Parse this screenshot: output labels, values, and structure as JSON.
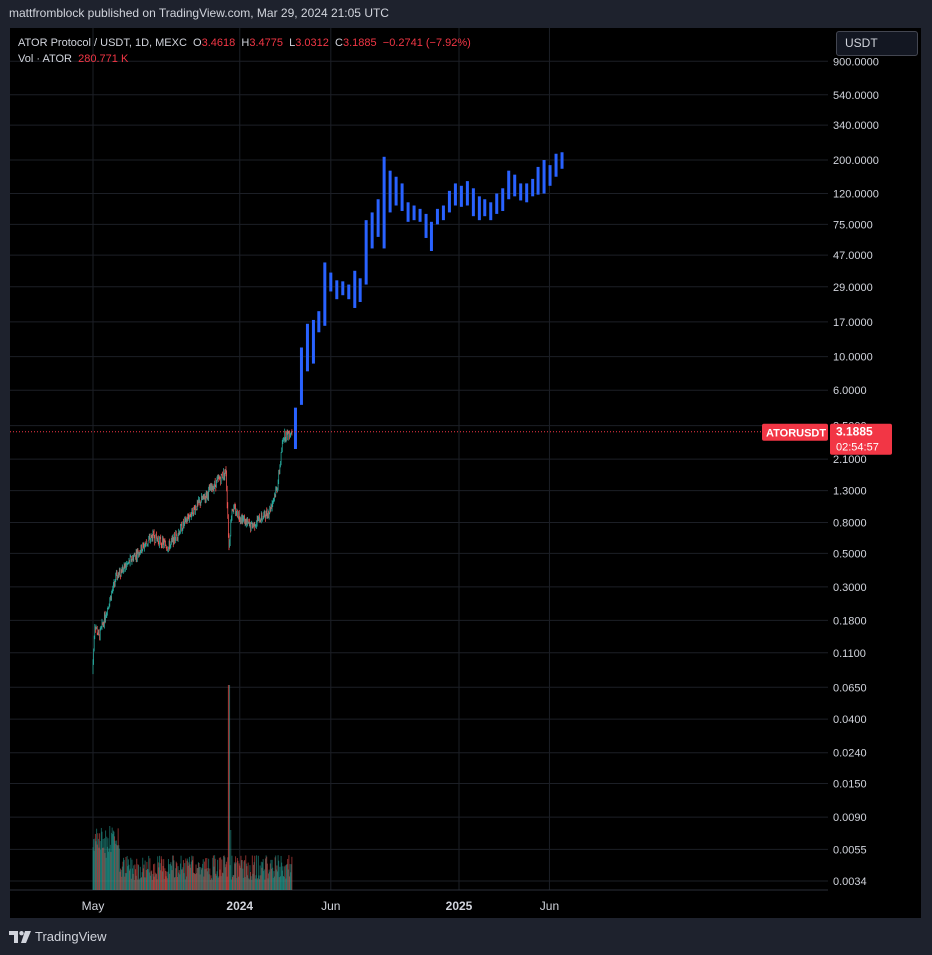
{
  "publisher": "mattfromblock published on TradingView.com, Mar 29, 2024 21:05 UTC",
  "legend": {
    "symbol": "ATOR Protocol / USDT, 1D, MEXC",
    "o_label": "O",
    "o_value": "3.4618",
    "h_label": "H",
    "h_value": "3.4775",
    "l_label": "L",
    "l_value": "3.0312",
    "c_label": "C",
    "c_value": "3.1885",
    "change": "−0.2741 (−7.92%)",
    "vol_label": "Vol · ATOR",
    "vol_value": "280.771 K"
  },
  "currency_button": "USDT",
  "price_tag": {
    "symbol": "ATORUSDT",
    "price": "3.1885",
    "countdown": "02:54:57",
    "color": "#f23645"
  },
  "footer": {
    "brand": "TradingView",
    "logo": "tradingview-logo-icon"
  },
  "colors": {
    "up": "#26a69a",
    "down": "#ef5350",
    "projection": "#2962ff",
    "background": "#000000",
    "grid": "#1c1f26"
  },
  "chart_data": {
    "type": "candlestick",
    "scale": "log",
    "y_ticks": [
      "900.0000",
      "540.0000",
      "340.0000",
      "200.0000",
      "120.0000",
      "75.0000",
      "47.0000",
      "29.0000",
      "17.0000",
      "10.0000",
      "6.0000",
      "3.5000",
      "2.1000",
      "1.3000",
      "0.8000",
      "0.5000",
      "0.3000",
      "0.1800",
      "0.1100",
      "0.0650",
      "0.0400",
      "0.0240",
      "0.0150",
      "0.0090",
      "0.0055",
      "0.0034"
    ],
    "x_ticks": [
      "May",
      "2024",
      "Jun",
      "2025",
      "Jun"
    ],
    "last_price": 3.1885,
    "price_series_anchors": [
      {
        "date": "2023-05-01",
        "price": 0.08
      },
      {
        "date": "2023-05-05",
        "price": 0.17
      },
      {
        "date": "2023-05-12",
        "price": 0.14
      },
      {
        "date": "2023-06-10",
        "price": 0.35
      },
      {
        "date": "2023-07-10",
        "price": 0.48
      },
      {
        "date": "2023-08-10",
        "price": 0.65
      },
      {
        "date": "2023-09-05",
        "price": 0.55
      },
      {
        "date": "2023-10-15",
        "price": 0.95
      },
      {
        "date": "2023-12-10",
        "price": 1.75
      },
      {
        "date": "2023-12-15",
        "price": 0.55
      },
      {
        "date": "2023-12-20",
        "price": 1.0
      },
      {
        "date": "2024-01-20",
        "price": 0.75
      },
      {
        "date": "2024-02-20",
        "price": 0.95
      },
      {
        "date": "2024-03-05",
        "price": 1.4
      },
      {
        "date": "2024-03-15",
        "price": 3.0
      },
      {
        "date": "2024-03-29",
        "price": 3.19
      }
    ],
    "projection_bars": [
      {
        "date": "2024-04-03",
        "low": 2.45,
        "high": 4.6
      },
      {
        "date": "2024-04-13",
        "low": 4.8,
        "high": 11.5
      },
      {
        "date": "2024-04-23",
        "low": 8.0,
        "high": 16.5
      },
      {
        "date": "2024-05-03",
        "low": 9.0,
        "high": 17.5
      },
      {
        "date": "2024-05-12",
        "low": 14.5,
        "high": 20.0
      },
      {
        "date": "2024-05-22",
        "low": 16.0,
        "high": 42.0
      },
      {
        "date": "2024-06-01",
        "low": 27.0,
        "high": 36.0
      },
      {
        "date": "2024-06-11",
        "low": 24.0,
        "high": 32.0
      },
      {
        "date": "2024-06-21",
        "low": 25.5,
        "high": 31.5
      },
      {
        "date": "2024-07-01",
        "low": 24.0,
        "high": 30.0
      },
      {
        "date": "2024-07-11",
        "low": 21.0,
        "high": 37.0
      },
      {
        "date": "2024-07-20",
        "low": 23.0,
        "high": 33.0
      },
      {
        "date": "2024-07-30",
        "low": 30.0,
        "high": 80.0
      },
      {
        "date": "2024-08-09",
        "low": 52.0,
        "high": 90.0
      },
      {
        "date": "2024-08-19",
        "low": 62.0,
        "high": 110.0
      },
      {
        "date": "2024-08-29",
        "low": 52.0,
        "high": 210.0
      },
      {
        "date": "2024-09-08",
        "low": 90.0,
        "high": 170.0
      },
      {
        "date": "2024-09-18",
        "low": 100.0,
        "high": 155.0
      },
      {
        "date": "2024-09-28",
        "low": 92.0,
        "high": 140.0
      },
      {
        "date": "2024-10-08",
        "low": 78.0,
        "high": 105.0
      },
      {
        "date": "2024-10-18",
        "low": 80.0,
        "high": 100.0
      },
      {
        "date": "2024-10-28",
        "low": 78.0,
        "high": 95.0
      },
      {
        "date": "2024-11-07",
        "low": 61.0,
        "high": 88.0
      },
      {
        "date": "2024-11-16",
        "low": 50.0,
        "high": 78.0
      },
      {
        "date": "2024-11-26",
        "low": 75.0,
        "high": 95.0
      },
      {
        "date": "2024-12-06",
        "low": 80.0,
        "high": 100.0
      },
      {
        "date": "2024-12-16",
        "low": 90.0,
        "high": 125.0
      },
      {
        "date": "2024-12-26",
        "low": 100.0,
        "high": 140.0
      },
      {
        "date": "2025-01-05",
        "low": 98.0,
        "high": 135.0
      },
      {
        "date": "2025-01-15",
        "low": 100.0,
        "high": 145.0
      },
      {
        "date": "2025-01-25",
        "low": 85.0,
        "high": 130.0
      },
      {
        "date": "2025-02-04",
        "low": 80.0,
        "high": 115.0
      },
      {
        "date": "2025-02-13",
        "low": 85.0,
        "high": 110.0
      },
      {
        "date": "2025-02-23",
        "low": 80.0,
        "high": 105.0
      },
      {
        "date": "2025-03-05",
        "low": 88.0,
        "high": 120.0
      },
      {
        "date": "2025-03-15",
        "low": 92.0,
        "high": 130.0
      },
      {
        "date": "2025-03-25",
        "low": 110.0,
        "high": 170.0
      },
      {
        "date": "2025-04-04",
        "low": 115.0,
        "high": 160.0
      },
      {
        "date": "2025-04-14",
        "low": 108.0,
        "high": 140.0
      },
      {
        "date": "2025-04-24",
        "low": 105.0,
        "high": 140.0
      },
      {
        "date": "2025-05-04",
        "low": 115.0,
        "high": 150.0
      },
      {
        "date": "2025-05-13",
        "low": 118.0,
        "high": 180.0
      },
      {
        "date": "2025-05-23",
        "low": 120.0,
        "high": 200.0
      },
      {
        "date": "2025-06-02",
        "low": 135.0,
        "high": 185.0
      },
      {
        "date": "2025-06-12",
        "low": 155.0,
        "high": 220.0
      },
      {
        "date": "2025-06-22",
        "low": 175.0,
        "high": 225.0
      }
    ]
  }
}
